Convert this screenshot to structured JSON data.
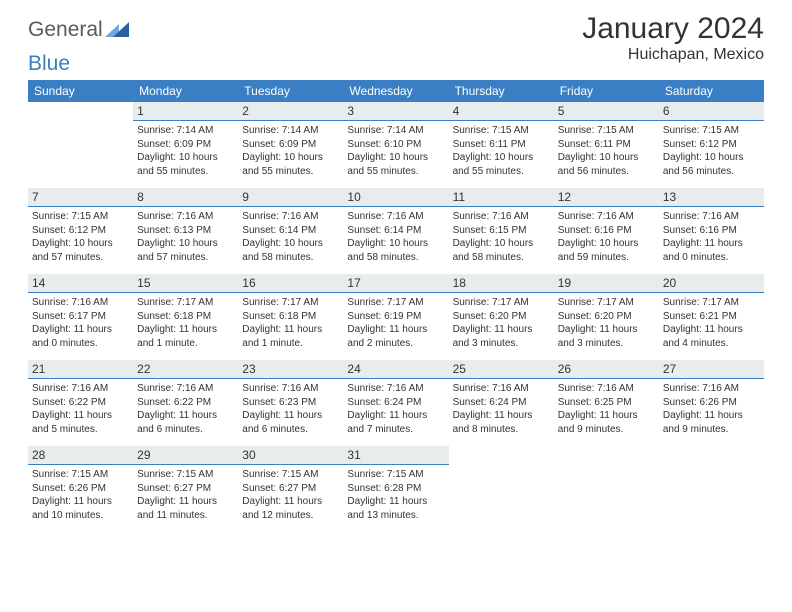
{
  "logo": {
    "gen": "General",
    "blue": "Blue"
  },
  "header": {
    "month_title": "January 2024",
    "location": "Huichapan, Mexico"
  },
  "colors": {
    "accent": "#3a7fc4",
    "daynum_bg": "#e9eced",
    "text": "#333333",
    "logo_gray": "#5a5a5a",
    "logo_blue": "#3a7fc4",
    "tri_light": "#6fa8dc",
    "tri_dark": "#2c5f9e"
  },
  "days_of_week": [
    "Sunday",
    "Monday",
    "Tuesday",
    "Wednesday",
    "Thursday",
    "Friday",
    "Saturday"
  ],
  "cells": [
    {
      "n": "",
      "sr": "",
      "ss": "",
      "dl": ""
    },
    {
      "n": "1",
      "sr": "7:14 AM",
      "ss": "6:09 PM",
      "dl": "10 hours and 55 minutes."
    },
    {
      "n": "2",
      "sr": "7:14 AM",
      "ss": "6:09 PM",
      "dl": "10 hours and 55 minutes."
    },
    {
      "n": "3",
      "sr": "7:14 AM",
      "ss": "6:10 PM",
      "dl": "10 hours and 55 minutes."
    },
    {
      "n": "4",
      "sr": "7:15 AM",
      "ss": "6:11 PM",
      "dl": "10 hours and 55 minutes."
    },
    {
      "n": "5",
      "sr": "7:15 AM",
      "ss": "6:11 PM",
      "dl": "10 hours and 56 minutes."
    },
    {
      "n": "6",
      "sr": "7:15 AM",
      "ss": "6:12 PM",
      "dl": "10 hours and 56 minutes."
    },
    {
      "n": "7",
      "sr": "7:15 AM",
      "ss": "6:12 PM",
      "dl": "10 hours and 57 minutes."
    },
    {
      "n": "8",
      "sr": "7:16 AM",
      "ss": "6:13 PM",
      "dl": "10 hours and 57 minutes."
    },
    {
      "n": "9",
      "sr": "7:16 AM",
      "ss": "6:14 PM",
      "dl": "10 hours and 58 minutes."
    },
    {
      "n": "10",
      "sr": "7:16 AM",
      "ss": "6:14 PM",
      "dl": "10 hours and 58 minutes."
    },
    {
      "n": "11",
      "sr": "7:16 AM",
      "ss": "6:15 PM",
      "dl": "10 hours and 58 minutes."
    },
    {
      "n": "12",
      "sr": "7:16 AM",
      "ss": "6:16 PM",
      "dl": "10 hours and 59 minutes."
    },
    {
      "n": "13",
      "sr": "7:16 AM",
      "ss": "6:16 PM",
      "dl": "11 hours and 0 minutes."
    },
    {
      "n": "14",
      "sr": "7:16 AM",
      "ss": "6:17 PM",
      "dl": "11 hours and 0 minutes."
    },
    {
      "n": "15",
      "sr": "7:17 AM",
      "ss": "6:18 PM",
      "dl": "11 hours and 1 minute."
    },
    {
      "n": "16",
      "sr": "7:17 AM",
      "ss": "6:18 PM",
      "dl": "11 hours and 1 minute."
    },
    {
      "n": "17",
      "sr": "7:17 AM",
      "ss": "6:19 PM",
      "dl": "11 hours and 2 minutes."
    },
    {
      "n": "18",
      "sr": "7:17 AM",
      "ss": "6:20 PM",
      "dl": "11 hours and 3 minutes."
    },
    {
      "n": "19",
      "sr": "7:17 AM",
      "ss": "6:20 PM",
      "dl": "11 hours and 3 minutes."
    },
    {
      "n": "20",
      "sr": "7:17 AM",
      "ss": "6:21 PM",
      "dl": "11 hours and 4 minutes."
    },
    {
      "n": "21",
      "sr": "7:16 AM",
      "ss": "6:22 PM",
      "dl": "11 hours and 5 minutes."
    },
    {
      "n": "22",
      "sr": "7:16 AM",
      "ss": "6:22 PM",
      "dl": "11 hours and 6 minutes."
    },
    {
      "n": "23",
      "sr": "7:16 AM",
      "ss": "6:23 PM",
      "dl": "11 hours and 6 minutes."
    },
    {
      "n": "24",
      "sr": "7:16 AM",
      "ss": "6:24 PM",
      "dl": "11 hours and 7 minutes."
    },
    {
      "n": "25",
      "sr": "7:16 AM",
      "ss": "6:24 PM",
      "dl": "11 hours and 8 minutes."
    },
    {
      "n": "26",
      "sr": "7:16 AM",
      "ss": "6:25 PM",
      "dl": "11 hours and 9 minutes."
    },
    {
      "n": "27",
      "sr": "7:16 AM",
      "ss": "6:26 PM",
      "dl": "11 hours and 9 minutes."
    },
    {
      "n": "28",
      "sr": "7:15 AM",
      "ss": "6:26 PM",
      "dl": "11 hours and 10 minutes."
    },
    {
      "n": "29",
      "sr": "7:15 AM",
      "ss": "6:27 PM",
      "dl": "11 hours and 11 minutes."
    },
    {
      "n": "30",
      "sr": "7:15 AM",
      "ss": "6:27 PM",
      "dl": "11 hours and 12 minutes."
    },
    {
      "n": "31",
      "sr": "7:15 AM",
      "ss": "6:28 PM",
      "dl": "11 hours and 13 minutes."
    },
    {
      "n": "",
      "sr": "",
      "ss": "",
      "dl": ""
    },
    {
      "n": "",
      "sr": "",
      "ss": "",
      "dl": ""
    },
    {
      "n": "",
      "sr": "",
      "ss": "",
      "dl": ""
    }
  ],
  "labels": {
    "sunrise": "Sunrise:",
    "sunset": "Sunset:",
    "daylight": "Daylight:"
  }
}
